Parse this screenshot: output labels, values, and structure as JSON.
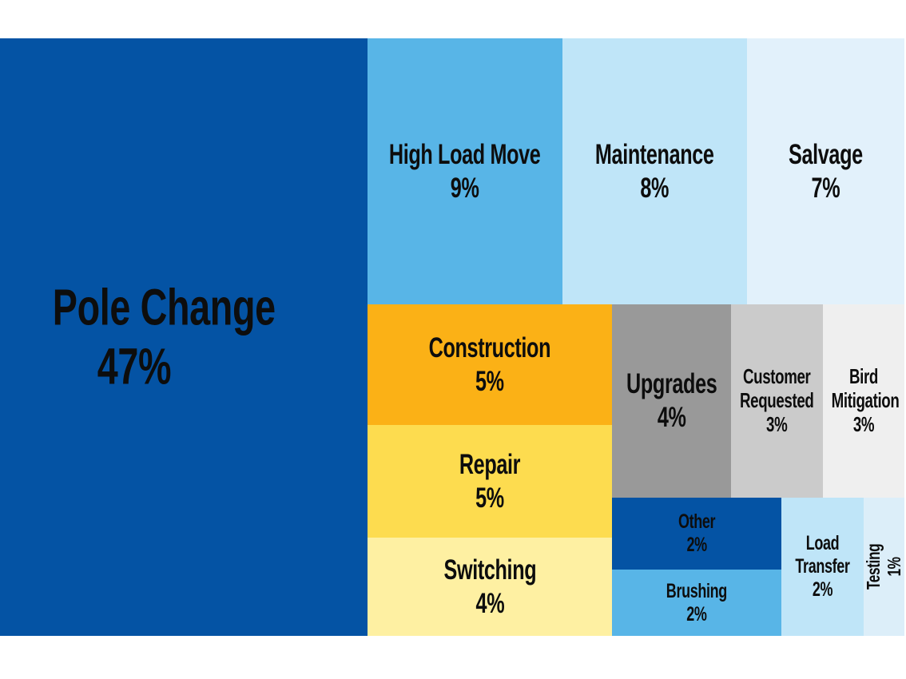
{
  "page": {
    "background": "#FFFFFF",
    "text_color": "#0D0D0D"
  },
  "chart_data": {
    "type": "treemap",
    "title": "",
    "unit": "percent",
    "value_total": 102,
    "legend": "none",
    "tiles": [
      {
        "label": "Pole Change",
        "value": 47,
        "value_label": "47%",
        "color": "#0453A4"
      },
      {
        "label": "High Load Move",
        "value": 9,
        "value_label": "9%",
        "color": "#58B5E7"
      },
      {
        "label": "Maintenance",
        "value": 8,
        "value_label": "8%",
        "color": "#BFE5F8"
      },
      {
        "label": "Salvage",
        "value": 7,
        "value_label": "7%",
        "color": "#E2F1FB"
      },
      {
        "label": "Construction",
        "value": 5,
        "value_label": "5%",
        "color": "#FBB116"
      },
      {
        "label": "Repair",
        "value": 5,
        "value_label": "5%",
        "color": "#FDDC4F"
      },
      {
        "label": "Switching",
        "value": 4,
        "value_label": "4%",
        "color": "#FEF0A2"
      },
      {
        "label": "Upgrades",
        "value": 4,
        "value_label": "4%",
        "color": "#999999"
      },
      {
        "label": "Customer Requested",
        "value": 3,
        "value_label": "3%",
        "color": "#CBCBCB"
      },
      {
        "label": "Bird Mitigation",
        "value": 3,
        "value_label": "3%",
        "color": "#EFEFEF"
      },
      {
        "label": "Other",
        "value": 2,
        "value_label": "2%",
        "color": "#0453A4"
      },
      {
        "label": "Brushing",
        "value": 2,
        "value_label": "2%",
        "color": "#58B5E7"
      },
      {
        "label": "Load Transfer",
        "value": 2,
        "value_label": "2%",
        "color": "#BFE5F8"
      },
      {
        "label": "Testing",
        "value": 1,
        "value_label": "1%",
        "color": "#DCEEF9"
      }
    ]
  }
}
